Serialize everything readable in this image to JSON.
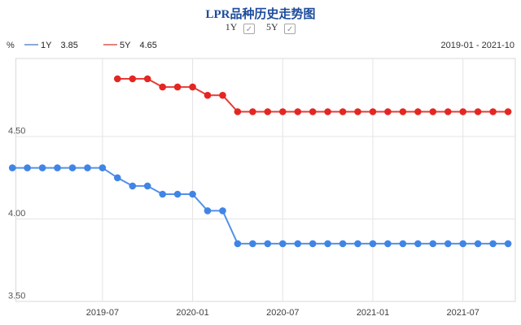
{
  "header": {
    "title": "LPR品种历史走势图",
    "toggles": [
      {
        "label": "1Y",
        "checked": true
      },
      {
        "label": "5Y",
        "checked": true
      }
    ]
  },
  "legend": {
    "unit": "%",
    "items": [
      {
        "name": "1Y",
        "value": "3.85",
        "swatch_color": "#8aaad2"
      },
      {
        "name": "5Y",
        "value": "4.65",
        "swatch_color": "#e2837c"
      }
    ],
    "period": "2019-01 - 2021-10"
  },
  "chart_data": {
    "type": "line",
    "title": "LPR品种历史走势图",
    "ylabel": "%",
    "grid": true,
    "legend_position": "top-left",
    "ylim": [
      3.5,
      5.0
    ],
    "y_ticks": [
      4.5,
      4.0,
      3.5
    ],
    "y_tick_labels": [
      "4.50",
      "4.00",
      "3.50"
    ],
    "x_tick_labels": [
      "2019-07",
      "2020-01",
      "2020-07",
      "2021-01",
      "2021-07"
    ],
    "x": [
      "2019-01",
      "2019-02",
      "2019-03",
      "2019-04",
      "2019-05",
      "2019-06",
      "2019-07",
      "2019-08",
      "2019-09",
      "2019-10",
      "2019-11",
      "2019-12",
      "2020-01",
      "2020-02",
      "2020-03",
      "2020-04",
      "2020-05",
      "2020-06",
      "2020-07",
      "2020-08",
      "2020-09",
      "2020-10",
      "2020-11",
      "2020-12",
      "2021-01",
      "2021-02",
      "2021-03",
      "2021-04",
      "2021-05",
      "2021-06",
      "2021-07",
      "2021-08",
      "2021-09",
      "2021-10"
    ],
    "series": [
      {
        "name": "1Y",
        "color": "#4085e6",
        "values": [
          4.31,
          4.31,
          4.31,
          4.31,
          4.31,
          4.31,
          4.31,
          4.25,
          4.2,
          4.2,
          4.15,
          4.15,
          4.15,
          4.05,
          4.05,
          3.85,
          3.85,
          3.85,
          3.85,
          3.85,
          3.85,
          3.85,
          3.85,
          3.85,
          3.85,
          3.85,
          3.85,
          3.85,
          3.85,
          3.85,
          3.85,
          3.85,
          3.85,
          3.85
        ]
      },
      {
        "name": "5Y",
        "color": "#e42622",
        "values": [
          null,
          null,
          null,
          null,
          null,
          null,
          null,
          4.85,
          4.85,
          4.85,
          4.8,
          4.8,
          4.8,
          4.75,
          4.75,
          4.65,
          4.65,
          4.65,
          4.65,
          4.65,
          4.65,
          4.65,
          4.65,
          4.65,
          4.65,
          4.65,
          4.65,
          4.65,
          4.65,
          4.65,
          4.65,
          4.65,
          4.65,
          4.65
        ]
      }
    ]
  }
}
